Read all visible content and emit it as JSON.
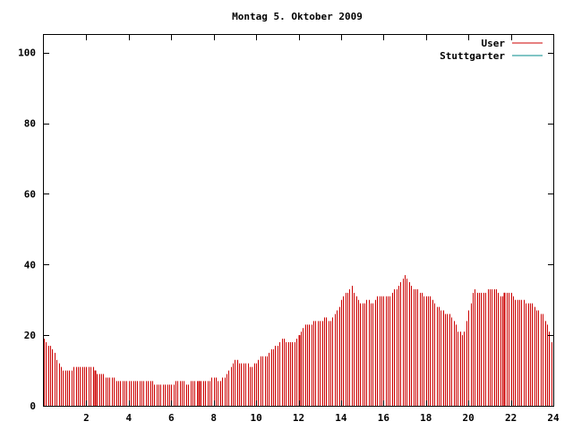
{
  "chart_data": {
    "type": "bar",
    "title": "Montag 5. Oktober 2009",
    "xlabel": "",
    "ylabel": "",
    "xlim": [
      0,
      24
    ],
    "ylim": [
      0,
      105
    ],
    "x_ticks": [
      2,
      4,
      6,
      8,
      10,
      12,
      14,
      16,
      18,
      20,
      22,
      24
    ],
    "y_ticks": [
      0,
      20,
      40,
      60,
      80,
      100
    ],
    "grid": false,
    "legend_position": "top-right",
    "series": [
      {
        "name": "User",
        "color": "#cc0000",
        "style": "impulses"
      },
      {
        "name": "Stuttgarter",
        "color": "#008b8b",
        "style": "impulses"
      }
    ],
    "profile": {
      "hours": [
        0.0,
        0.25,
        0.5,
        0.75,
        1.0,
        1.25,
        1.5,
        1.75,
        2.0,
        2.25,
        2.5,
        2.75,
        3.0,
        3.25,
        3.5,
        3.75,
        4.0,
        4.25,
        4.5,
        4.75,
        5.0,
        5.25,
        5.5,
        5.75,
        6.0,
        6.25,
        6.5,
        6.75,
        7.0,
        7.25,
        7.5,
        7.75,
        8.0,
        8.25,
        8.5,
        8.75,
        9.0,
        9.25,
        9.5,
        9.75,
        10.0,
        10.25,
        10.5,
        10.75,
        11.0,
        11.25,
        11.5,
        11.75,
        12.0,
        12.25,
        12.5,
        12.75,
        13.0,
        13.25,
        13.5,
        13.75,
        14.0,
        14.25,
        14.5,
        14.75,
        15.0,
        15.25,
        15.5,
        15.75,
        16.0,
        16.25,
        16.5,
        16.75,
        17.0,
        17.25,
        17.5,
        17.75,
        18.0,
        18.25,
        18.5,
        18.75,
        19.0,
        19.25,
        19.5,
        19.75,
        20.0,
        20.25,
        20.5,
        20.75,
        21.0,
        21.25,
        21.5,
        21.75,
        22.0,
        22.25,
        22.5,
        22.75,
        23.0,
        23.25,
        23.5,
        23.75,
        24.0
      ],
      "values": [
        19,
        17,
        15,
        11,
        10,
        10,
        11,
        11,
        11,
        11,
        9,
        9,
        8,
        8,
        7,
        7,
        7,
        7,
        7,
        7,
        7,
        6,
        6,
        6,
        6,
        7,
        7,
        6,
        7,
        7,
        7,
        7,
        8,
        7,
        8,
        10,
        13,
        12,
        12,
        11,
        12,
        14,
        14,
        16,
        17,
        19,
        18,
        18,
        20,
        23,
        23,
        24,
        24,
        25,
        24,
        26,
        30,
        32,
        34,
        30,
        29,
        30,
        29,
        31,
        31,
        31,
        33,
        34,
        37,
        34,
        33,
        32,
        31,
        31,
        28,
        27,
        26,
        25,
        21,
        20,
        27,
        33,
        32,
        32,
        33,
        33,
        31,
        32,
        32,
        30,
        30,
        29,
        29,
        27,
        26,
        22,
        15
      ]
    },
    "samples_per_hour": 10,
    "highlight_hours": [
      2.4,
      7.3,
      12.0,
      21.7
    ]
  }
}
